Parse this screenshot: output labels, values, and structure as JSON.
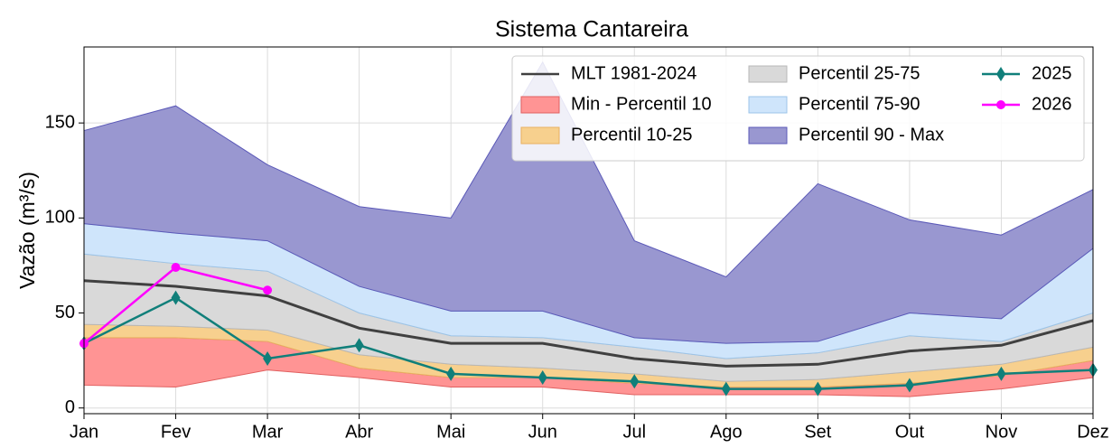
{
  "chart_data": {
    "type": "band_line",
    "title": "Sistema Cantareira",
    "ylabel": "Vazão (m³/s)",
    "categories": [
      "Jan",
      "Fev",
      "Mar",
      "Abr",
      "Mai",
      "Jun",
      "Jul",
      "Ago",
      "Set",
      "Out",
      "Nov",
      "Dez"
    ],
    "bands": [
      {
        "name": "Min - Percentil 10",
        "color": "#ff9494",
        "edge": "#e06060",
        "lower": [
          12,
          11,
          20,
          16,
          11,
          11,
          7,
          7,
          7,
          6,
          10,
          16
        ],
        "upper": [
          37,
          37,
          35,
          21,
          16,
          16,
          13,
          11,
          11,
          13,
          17,
          25
        ]
      },
      {
        "name": "Percentil 10-25",
        "color": "#f7d08e",
        "edge": "#e8b060",
        "lower": [
          37,
          37,
          35,
          21,
          16,
          16,
          13,
          11,
          11,
          13,
          17,
          25
        ],
        "upper": [
          44,
          43,
          41,
          28,
          23,
          21,
          18,
          14,
          15,
          19,
          23,
          32
        ]
      },
      {
        "name": "Percentil 25-75",
        "color": "#d9d9d9",
        "edge": "#b8b8b8",
        "lower": [
          44,
          43,
          41,
          28,
          23,
          21,
          18,
          14,
          15,
          19,
          23,
          32
        ],
        "upper": [
          81,
          76,
          72,
          50,
          38,
          37,
          32,
          26,
          29,
          38,
          35,
          50
        ]
      },
      {
        "name": "Percentil 75-90",
        "color": "#cfe5fb",
        "edge": "#9cc4e8",
        "lower": [
          81,
          76,
          72,
          50,
          38,
          37,
          32,
          26,
          29,
          38,
          35,
          50
        ],
        "upper": [
          97,
          92,
          88,
          64,
          51,
          51,
          37,
          34,
          35,
          50,
          47,
          84
        ]
      },
      {
        "name": "Percentil 90 - Max",
        "color": "#9997d0",
        "edge": "#5b59b8",
        "lower": [
          97,
          92,
          88,
          64,
          51,
          51,
          37,
          34,
          35,
          50,
          47,
          84
        ],
        "upper": [
          146,
          159,
          128,
          106,
          100,
          182,
          88,
          69,
          118,
          99,
          91,
          115
        ]
      }
    ],
    "series": [
      {
        "name": "MLT 1981-2024",
        "color": "#404040",
        "marker": "none",
        "values": [
          67,
          64,
          59,
          42,
          34,
          34,
          26,
          22,
          23,
          30,
          33,
          46
        ]
      },
      {
        "name": "2025",
        "color": "#107f7a",
        "marker": "diamond",
        "values": [
          34,
          58,
          26,
          33,
          18,
          16,
          14,
          10,
          10,
          12,
          18,
          20
        ]
      },
      {
        "name": "2026",
        "color": "#ff00ff",
        "marker": "circle",
        "values": [
          34,
          74,
          62,
          null,
          null,
          null,
          null,
          null,
          null,
          null,
          null,
          null
        ]
      }
    ],
    "ylim": [
      -3,
      190
    ],
    "yticks": [
      0,
      50,
      100,
      150
    ],
    "grid": true,
    "legend": "upper right"
  }
}
